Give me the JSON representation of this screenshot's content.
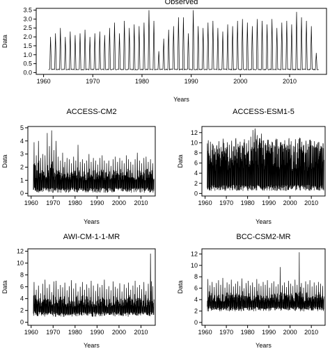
{
  "chart_data": [
    {
      "type": "line",
      "title": "Observed",
      "xlabel": "Years",
      "ylabel": "Data",
      "xlim": [
        1958.5,
        2017.5
      ],
      "ylim": [
        -0.1,
        3.6
      ],
      "x_ticks": [
        1960,
        1970,
        1980,
        1990,
        2000,
        2010
      ],
      "y_ticks": [
        0.0,
        0.5,
        1.0,
        1.5,
        2.0,
        2.5,
        3.0,
        3.5
      ],
      "y_tick_labels": [
        "0.0",
        "0.5",
        "1.0",
        "1.5",
        "2.0",
        "2.5",
        "3.0",
        "3.5"
      ],
      "series": [
        {
          "x_start": 1961,
          "x_end": 2015,
          "baseline": 0.15,
          "annual_peaks": [
            2.0,
            2.2,
            2.5,
            2.0,
            2.3,
            2.1,
            2.2,
            2.4,
            2.0,
            2.2,
            2.3,
            2.1,
            2.5,
            2.8,
            2.2,
            2.9,
            2.5,
            2.7,
            2.6,
            2.8,
            3.5,
            2.9,
            1.2,
            1.9,
            2.4,
            2.6,
            3.1,
            3.1,
            2.2,
            3.5,
            2.6,
            2.5,
            2.8,
            2.9,
            2.5,
            2.3,
            2.7,
            2.6,
            2.9,
            3.0,
            2.8,
            2.6,
            3.0,
            2.9,
            2.7,
            3.0,
            2.5,
            2.8,
            2.9,
            2.7,
            3.4,
            3.1,
            2.9,
            2.6,
            1.1
          ]
        }
      ]
    },
    {
      "type": "line",
      "title": "ACCESS-CM2",
      "xlabel": "Years",
      "ylabel": "Data",
      "xlim": [
        1958.5,
        2016.5
      ],
      "ylim": [
        -0.2,
        5.1
      ],
      "x_ticks": [
        1960,
        1970,
        1980,
        1990,
        2000,
        2010
      ],
      "y_ticks": [
        0,
        1,
        2,
        3,
        4,
        5
      ],
      "y_tick_labels": [
        "0",
        "1",
        "2",
        "3",
        "4",
        "5"
      ],
      "series": [
        {
          "x_start": 1961,
          "x_end": 2015,
          "mean": 1.0,
          "annual_peaks": [
            3.9,
            2.9,
            4.0,
            2.7,
            3.0,
            2.9,
            4.6,
            3.6,
            4.8,
            3.3,
            4.0,
            2.8,
            2.5,
            3.1,
            2.4,
            2.7,
            2.6,
            2.3,
            2.8,
            2.5,
            3.7,
            2.4,
            2.6,
            2.3,
            2.5,
            3.0,
            2.4,
            2.7,
            2.5,
            2.2,
            2.7,
            2.9,
            2.5,
            2.3,
            2.5,
            2.1,
            2.6,
            2.8,
            2.4,
            2.7,
            2.5,
            2.3,
            2.9,
            2.6,
            2.4,
            2.2,
            2.6,
            3.1,
            2.5,
            2.3,
            2.7,
            2.8,
            2.4,
            2.6,
            2.3
          ]
        }
      ]
    },
    {
      "type": "line",
      "title": "ACCESS-ESM1-5",
      "xlabel": "Years",
      "ylabel": "Data",
      "xlim": [
        1958.5,
        2016.5
      ],
      "ylim": [
        -0.5,
        13.2
      ],
      "x_ticks": [
        1960,
        1970,
        1980,
        1990,
        2000,
        2010
      ],
      "y_ticks": [
        0,
        2,
        4,
        6,
        8,
        10,
        12
      ],
      "y_tick_labels": [
        "0",
        "2",
        "4",
        "6",
        "8",
        "10",
        "12"
      ],
      "series": [
        {
          "x_start": 1961,
          "x_end": 2015,
          "low": 0.5,
          "annual_peaks": [
            10.5,
            10.2,
            9.8,
            8.9,
            9.5,
            10.3,
            9.2,
            10.8,
            9.0,
            10.1,
            9.6,
            10.4,
            9.3,
            10.9,
            9.8,
            10.2,
            9.5,
            10.7,
            9.9,
            10.5,
            11.2,
            12.5,
            12.8,
            11.5,
            10.9,
            11.8,
            10.4,
            9.9,
            10.6,
            9.7,
            10.2,
            9.5,
            10.8,
            9.3,
            10.1,
            9.8,
            10.5,
            9.6,
            10.9,
            10.3,
            9.4,
            10.7,
            9.9,
            11.0,
            10.2,
            9.6,
            10.4,
            9.8,
            10.6,
            9.5,
            10.3,
            9.7,
            10.1,
            9.4,
            9.9
          ]
        }
      ]
    },
    {
      "type": "line",
      "title": "AWI-CM-1-1-MR",
      "xlabel": "Years",
      "ylabel": "Data",
      "xlim": [
        1958.5,
        2016.5
      ],
      "ylim": [
        -0.5,
        12.4
      ],
      "x_ticks": [
        1960,
        1970,
        1980,
        1990,
        2000,
        2010
      ],
      "y_ticks": [
        0,
        2,
        4,
        6,
        8,
        10,
        12
      ],
      "y_tick_labels": [
        "0",
        "2",
        "4",
        "6",
        "8",
        "10",
        "12"
      ],
      "series": [
        {
          "x_start": 1961,
          "x_end": 2015,
          "mean": 2.5,
          "annual_peaks": [
            6.8,
            5.5,
            6.2,
            4.9,
            6.5,
            7.2,
            5.8,
            6.4,
            5.1,
            6.9,
            7.0,
            5.6,
            6.3,
            5.9,
            6.7,
            5.4,
            6.1,
            7.1,
            5.7,
            6.6,
            5.2,
            6.0,
            6.8,
            5.5,
            6.4,
            5.8,
            7.0,
            6.2,
            5.3,
            6.5,
            5.9,
            6.3,
            7.2,
            5.6,
            6.1,
            5.4,
            6.9,
            6.0,
            5.7,
            6.6,
            5.2,
            6.4,
            5.8,
            6.7,
            5.5,
            6.2,
            7.0,
            5.9,
            6.3,
            5.6,
            6.8,
            5.3,
            6.5,
            11.6,
            6.1
          ]
        }
      ]
    },
    {
      "type": "line",
      "title": "BCC-CSM2-MR",
      "xlabel": "Years",
      "ylabel": "Data",
      "xlim": [
        1958.5,
        2016.5
      ],
      "ylim": [
        -0.5,
        12.9
      ],
      "x_ticks": [
        1960,
        1970,
        1980,
        1990,
        2000,
        2010
      ],
      "y_ticks": [
        0,
        2,
        4,
        6,
        8,
        10,
        12
      ],
      "y_tick_labels": [
        "0",
        "2",
        "4",
        "6",
        "8",
        "10",
        "12"
      ],
      "series": [
        {
          "x_start": 1961,
          "x_end": 2015,
          "mean": 3.5,
          "annual_peaks": [
            7.6,
            6.5,
            7.1,
            6.2,
            6.9,
            7.4,
            6.6,
            7.8,
            6.1,
            7.0,
            6.7,
            7.5,
            6.3,
            6.8,
            7.2,
            6.4,
            7.7,
            6.0,
            6.9,
            7.3,
            6.5,
            7.0,
            6.2,
            7.6,
            6.8,
            6.4,
            7.1,
            6.6,
            7.4,
            6.1,
            6.9,
            7.2,
            6.3,
            6.7,
            9.7,
            6.5,
            7.0,
            6.2,
            7.3,
            6.8,
            6.4,
            7.5,
            6.6,
            12.3,
            6.9,
            6.1,
            7.2,
            6.7,
            7.4,
            6.3,
            7.0,
            6.5,
            7.1,
            6.8,
            6.4
          ]
        }
      ]
    }
  ]
}
